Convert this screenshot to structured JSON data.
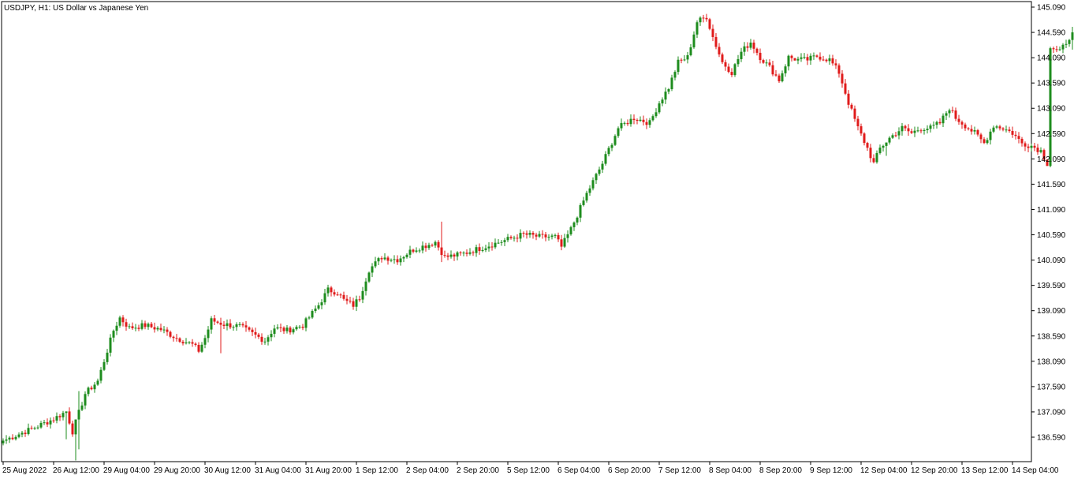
{
  "window": {
    "title": "USDJPY, H1:  US Dollar vs Japanese Yen"
  },
  "colors": {
    "bull": "#1e8c1e",
    "bear": "#e01b1b",
    "background": "#ffffff",
    "frame": "#000000",
    "text": "#000000"
  },
  "chart_data": {
    "type": "candlestick",
    "title": "USDJPY, H1:  US Dollar vs Japanese Yen",
    "symbol": "USDJPY",
    "timeframe": "H1",
    "description": "US Dollar vs Japanese Yen",
    "ylim": [
      136.3,
      145.15
    ],
    "y_ticks": [
      "145.090",
      "144.590",
      "144.090",
      "143.590",
      "143.090",
      "142.590",
      "142.090",
      "141.590",
      "141.090",
      "140.590",
      "140.090",
      "139.590",
      "139.090",
      "138.590",
      "138.090",
      "137.590",
      "137.090",
      "136.590"
    ],
    "x_ticks": [
      "25 Aug 2022",
      "26 Aug 12:00",
      "29 Aug 04:00",
      "29 Aug 20:00",
      "30 Aug 12:00",
      "31 Aug 04:00",
      "31 Aug 20:00",
      "1 Sep 12:00",
      "2 Sep 04:00",
      "2 Sep 20:00",
      "5 Sep 12:00",
      "6 Sep 04:00",
      "6 Sep 20:00",
      "7 Sep 12:00",
      "8 Sep 04:00",
      "8 Sep 20:00",
      "9 Sep 12:00",
      "12 Sep 04:00",
      "12 Sep 20:00",
      "13 Sep 12:00",
      "14 Sep 04:00"
    ],
    "candles_per_tick": 16,
    "waypoints": [
      [
        0,
        136.52
      ],
      [
        10,
        136.78
      ],
      [
        16,
        136.95
      ],
      [
        20,
        137.1
      ],
      [
        22,
        136.7
      ],
      [
        26,
        137.45
      ],
      [
        30,
        137.7
      ],
      [
        33,
        138.3
      ],
      [
        35,
        138.7
      ],
      [
        37,
        138.95
      ],
      [
        40,
        138.75
      ],
      [
        45,
        138.8
      ],
      [
        50,
        138.72
      ],
      [
        55,
        138.55
      ],
      [
        60,
        138.42
      ],
      [
        62,
        138.3
      ],
      [
        64,
        138.55
      ],
      [
        66,
        138.9
      ],
      [
        70,
        138.82
      ],
      [
        75,
        138.78
      ],
      [
        80,
        138.6
      ],
      [
        83,
        138.5
      ],
      [
        86,
        138.75
      ],
      [
        90,
        138.7
      ],
      [
        95,
        138.8
      ],
      [
        100,
        139.2
      ],
      [
        103,
        139.5
      ],
      [
        106,
        139.45
      ],
      [
        108,
        139.3
      ],
      [
        111,
        139.2
      ],
      [
        113,
        139.35
      ],
      [
        116,
        139.9
      ],
      [
        120,
        140.15
      ],
      [
        125,
        140.1
      ],
      [
        130,
        140.3
      ],
      [
        135,
        140.4
      ],
      [
        137,
        140.45
      ],
      [
        140,
        140.15
      ],
      [
        145,
        140.2
      ],
      [
        150,
        140.3
      ],
      [
        155,
        140.4
      ],
      [
        160,
        140.5
      ],
      [
        165,
        140.6
      ],
      [
        170,
        140.55
      ],
      [
        175,
        140.55
      ],
      [
        177,
        140.35
      ],
      [
        180,
        140.7
      ],
      [
        185,
        141.4
      ],
      [
        190,
        142.0
      ],
      [
        195,
        142.7
      ],
      [
        200,
        142.9
      ],
      [
        205,
        142.8
      ],
      [
        208,
        143.2
      ],
      [
        211,
        143.5
      ],
      [
        214,
        144.0
      ],
      [
        217,
        144.1
      ],
      [
        220,
        144.8
      ],
      [
        223,
        144.9
      ],
      [
        225,
        144.5
      ],
      [
        228,
        144.0
      ],
      [
        231,
        143.8
      ],
      [
        234,
        144.2
      ],
      [
        237,
        144.4
      ],
      [
        240,
        144.1
      ],
      [
        243,
        143.9
      ],
      [
        246,
        143.65
      ],
      [
        249,
        144.1
      ],
      [
        252,
        144.05
      ],
      [
        255,
        144.05
      ],
      [
        258,
        144.12
      ],
      [
        262,
        144.05
      ],
      [
        265,
        143.8
      ],
      [
        268,
        143.2
      ],
      [
        271,
        142.7
      ],
      [
        274,
        142.3
      ],
      [
        276,
        142.0
      ],
      [
        278,
        142.3
      ],
      [
        281,
        142.5
      ],
      [
        285,
        142.7
      ],
      [
        288,
        142.6
      ],
      [
        291,
        142.7
      ],
      [
        294,
        142.7
      ],
      [
        297,
        142.8
      ],
      [
        300,
        143.1
      ],
      [
        302,
        142.9
      ],
      [
        305,
        142.75
      ],
      [
        308,
        142.6
      ],
      [
        311,
        142.4
      ],
      [
        314,
        142.75
      ],
      [
        317,
        142.7
      ],
      [
        320,
        142.6
      ],
      [
        323,
        142.4
      ],
      [
        326,
        142.35
      ],
      [
        329,
        142.25
      ],
      [
        331,
        142.0
      ],
      [
        332,
        144.3
      ],
      [
        335,
        144.2
      ],
      [
        338,
        144.5
      ],
      [
        340,
        144.6
      ],
      [
        342,
        144.9
      ],
      [
        344,
        144.6
      ],
      [
        346,
        144.5
      ],
      [
        348,
        143.9
      ],
      [
        350,
        143.4
      ]
    ],
    "wick_highs": [
      [
        20,
        137.0
      ],
      [
        23,
        136.5
      ],
      [
        24,
        137.5
      ],
      [
        69,
        138.95
      ],
      [
        139,
        140.85
      ],
      [
        251,
        143.35
      ],
      [
        280,
        141.55
      ],
      [
        331,
        141.6
      ],
      [
        339,
        144.7
      ],
      [
        346,
        144.7
      ]
    ],
    "wick_lows": [
      [
        20,
        136.55
      ],
      [
        23,
        136.13
      ],
      [
        24,
        136.35
      ],
      [
        69,
        138.25
      ],
      [
        139,
        140.05
      ],
      [
        251,
        144.25
      ],
      [
        280,
        142.15
      ],
      [
        331,
        142.1
      ],
      [
        339,
        144.25
      ],
      [
        346,
        144.25
      ]
    ]
  }
}
